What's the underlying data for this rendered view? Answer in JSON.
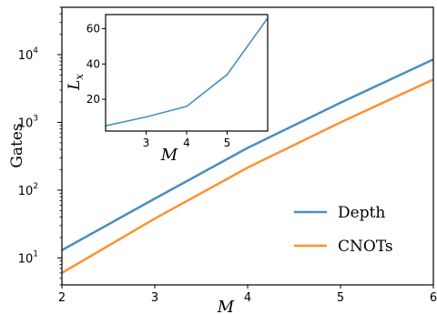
{
  "chart_data": [
    {
      "type": "line",
      "xlabel": "M",
      "ylabel": "Gates",
      "xlim": [
        2,
        6
      ],
      "ylim": [
        4,
        50000
      ],
      "yscale": "log",
      "xticks": [
        {
          "value": 2,
          "label": "2"
        },
        {
          "value": 3,
          "label": "3"
        },
        {
          "value": 4,
          "label": "4"
        },
        {
          "value": 5,
          "label": "5"
        },
        {
          "value": 6,
          "label": "6"
        }
      ],
      "yticks": [
        {
          "value": 10,
          "base": "10",
          "exp": "1"
        },
        {
          "value": 100,
          "base": "10",
          "exp": "2"
        },
        {
          "value": 1000,
          "base": "10",
          "exp": "3"
        },
        {
          "value": 10000,
          "base": "10",
          "exp": "4"
        }
      ],
      "grid": false,
      "legend_position": "lower-right",
      "series": [
        {
          "name": "Depth",
          "color": "#4a8fc0",
          "x": [
            2,
            3,
            4,
            5,
            6
          ],
          "y": [
            13,
            75,
            420,
            1950,
            8500
          ]
        },
        {
          "name": "CNOTs",
          "color": "#fd9231",
          "x": [
            2,
            3,
            4,
            5,
            6
          ],
          "y": [
            6,
            38,
            215,
            1000,
            4300
          ]
        }
      ]
    },
    {
      "type": "line",
      "xlabel": "M",
      "ylabel": "L_x",
      "xlim": [
        2,
        6
      ],
      "ylim": [
        2,
        68
      ],
      "xticks": [
        {
          "value": 3,
          "label": "3"
        },
        {
          "value": 4,
          "label": "4"
        },
        {
          "value": 5,
          "label": "5"
        }
      ],
      "yticks": [
        {
          "value": 20,
          "label": "20"
        },
        {
          "value": 40,
          "label": "40"
        },
        {
          "value": 60,
          "label": "60"
        }
      ],
      "grid": false,
      "series": [
        {
          "color": "#4a8fc0",
          "x": [
            2,
            3,
            4,
            5,
            6
          ],
          "y": [
            5,
            10,
            16,
            34,
            66
          ]
        }
      ]
    }
  ]
}
